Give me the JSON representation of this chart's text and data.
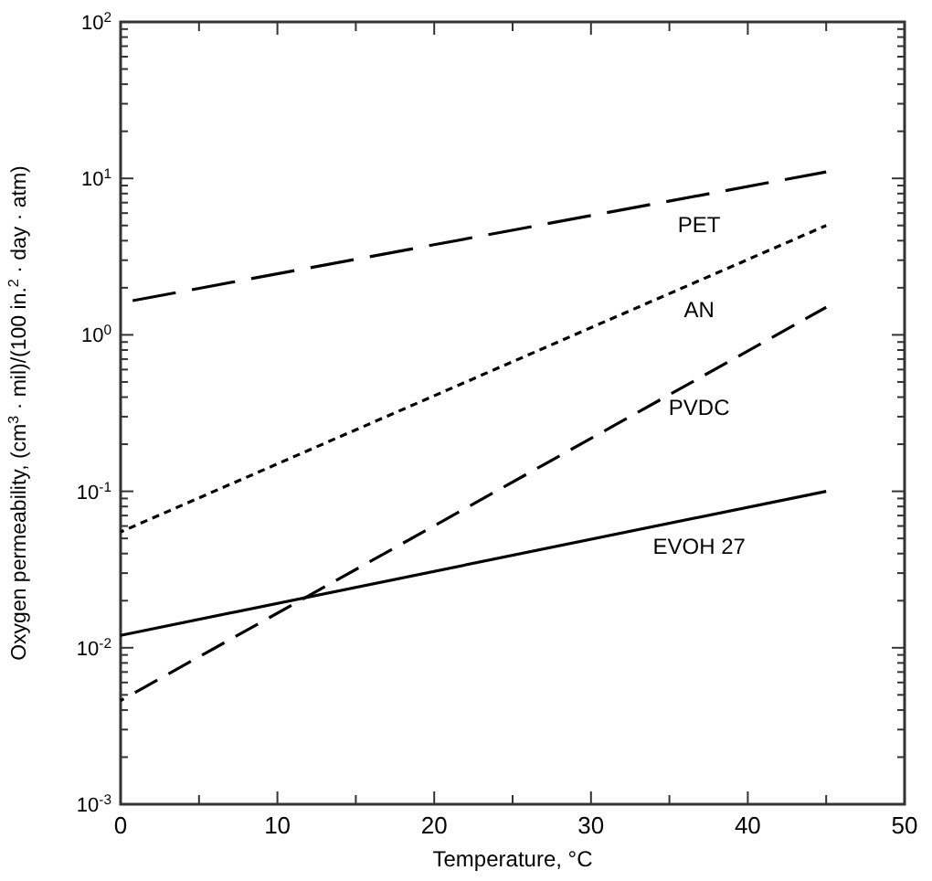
{
  "chart_data": {
    "type": "line",
    "xlabel": "Temperature, °C",
    "ylabel": "Oxygen permeability, (cm$^{3}$ · mil)/(100 in.$^{2}$ · day · atm)",
    "log": "y",
    "xlim": [
      0,
      50
    ],
    "ylim": [
      0.001,
      100
    ],
    "xticks": [
      0,
      {
        "value": 5,
        "label": null
      },
      10,
      {
        "value": 15,
        "label": null
      },
      20,
      {
        "value": 25,
        "label": null
      },
      30,
      {
        "value": 35,
        "label": null
      },
      40,
      {
        "value": 45,
        "label": null
      },
      50
    ],
    "yticks": [
      {
        "value": 0.001,
        "label": "10$^{-3}$"
      },
      {
        "value": 0.002,
        "label": null
      },
      {
        "value": 0.003,
        "label": null
      },
      {
        "value": 0.004,
        "label": null
      },
      {
        "value": 0.005,
        "label": null
      },
      {
        "value": 0.006,
        "label": null
      },
      {
        "value": 0.007,
        "label": null
      },
      {
        "value": 0.008,
        "label": null
      },
      {
        "value": 0.009,
        "label": null
      },
      {
        "value": 0.01,
        "label": "10$^{-2}$"
      },
      {
        "value": 0.02,
        "label": null
      },
      {
        "value": 0.03,
        "label": null
      },
      {
        "value": 0.04,
        "label": null
      },
      {
        "value": 0.05,
        "label": null
      },
      {
        "value": 0.06,
        "label": null
      },
      {
        "value": 0.07,
        "label": null
      },
      {
        "value": 0.08,
        "label": null
      },
      {
        "value": 0.09,
        "label": null
      },
      {
        "value": 0.1,
        "label": "10$^{-1}$"
      },
      {
        "value": 0.2,
        "label": null
      },
      {
        "value": 0.3,
        "label": null
      },
      {
        "value": 0.4,
        "label": null
      },
      {
        "value": 0.5,
        "label": null
      },
      {
        "value": 0.6,
        "label": null
      },
      {
        "value": 0.7,
        "label": null
      },
      {
        "value": 0.8,
        "label": null
      },
      {
        "value": 0.9,
        "label": null
      },
      {
        "value": 1,
        "label": "10$^{0}$"
      },
      {
        "value": 2,
        "label": null
      },
      {
        "value": 3,
        "label": null
      },
      {
        "value": 4,
        "label": null
      },
      {
        "value": 5,
        "label": null
      },
      {
        "value": 6,
        "label": null
      },
      {
        "value": 7,
        "label": null
      },
      {
        "value": 8,
        "label": null
      },
      {
        "value": 9,
        "label": null
      },
      {
        "value": 10,
        "label": "10$^{1}$"
      },
      {
        "value": 20,
        "label": null
      },
      {
        "value": 30,
        "label": null
      },
      {
        "value": 40,
        "label": null
      },
      {
        "value": 50,
        "label": null
      },
      {
        "value": 60,
        "label": null
      },
      {
        "value": 70,
        "label": null
      },
      {
        "value": 80,
        "label": null
      },
      {
        "value": 90,
        "label": null
      },
      {
        "value": 100,
        "label": "10$^{2}$"
      }
    ],
    "x": [
      0,
      45
    ],
    "grid": false,
    "marker": "none",
    "series": [
      {
        "name": "PET",
        "color": "#000000",
        "line_style": "dashed",
        "values": [
          1.6,
          11
        ]
      },
      {
        "name": "AN",
        "color": "#000000",
        "line_style": "dotted",
        "values": [
          0.055,
          5
        ]
      },
      {
        "name": "PVDC",
        "color": "#000000",
        "line_style": "dashed",
        "values": [
          0.0046,
          1.5
        ]
      },
      {
        "name": "EVOH 27",
        "color": "#000000",
        "line_style": "solid",
        "values": [
          0.012,
          0.1
        ]
      }
    ]
  }
}
